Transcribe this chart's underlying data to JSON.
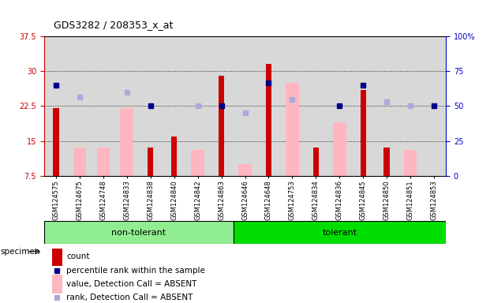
{
  "title": "GDS3282 / 208353_x_at",
  "samples": [
    "GSM124575",
    "GSM124675",
    "GSM124748",
    "GSM124833",
    "GSM124838",
    "GSM124840",
    "GSM124842",
    "GSM124863",
    "GSM124646",
    "GSM124648",
    "GSM124753",
    "GSM124834",
    "GSM124836",
    "GSM124845",
    "GSM124850",
    "GSM124851",
    "GSM124853"
  ],
  "groups": [
    {
      "name": "non-tolerant",
      "start": 0,
      "end": 8,
      "color": "#90EE90"
    },
    {
      "name": "tolerant",
      "start": 8,
      "end": 17,
      "color": "#00DD00"
    }
  ],
  "red_bars": [
    22.0,
    null,
    null,
    null,
    13.5,
    16.0,
    null,
    29.0,
    null,
    31.5,
    null,
    13.5,
    null,
    26.0,
    13.5,
    null,
    null
  ],
  "pink_bars": [
    null,
    13.5,
    13.5,
    22.0,
    null,
    null,
    13.0,
    null,
    10.0,
    null,
    27.5,
    null,
    19.0,
    null,
    null,
    13.0,
    null
  ],
  "blue_dots": [
    27.0,
    null,
    null,
    null,
    22.5,
    null,
    null,
    22.5,
    null,
    27.5,
    null,
    null,
    22.5,
    27.0,
    null,
    null,
    22.5
  ],
  "lightblue_dots": [
    null,
    24.5,
    null,
    25.5,
    null,
    null,
    22.5,
    null,
    21.0,
    null,
    24.0,
    null,
    null,
    null,
    23.5,
    22.5,
    null
  ],
  "ylim_left": [
    7.5,
    37.5
  ],
  "ylim_right": [
    0,
    100
  ],
  "yticks_left": [
    7.5,
    15.0,
    22.5,
    30.0,
    37.5
  ],
  "yticks_right": [
    0,
    25,
    50,
    75,
    100
  ],
  "ytick_labels_left": [
    "7.5",
    "15",
    "22.5",
    "30",
    "37.5"
  ],
  "ytick_labels_right": [
    "0",
    "25",
    "50",
    "75",
    "100%"
  ],
  "grid_lines": [
    15.0,
    22.5,
    30.0
  ],
  "left_axis_color": "#CC0000",
  "right_axis_color": "#0000CC",
  "background_color": "#d8d8d8",
  "legend_items": [
    {
      "label": "count",
      "color": "#CC0000",
      "type": "bar"
    },
    {
      "label": "percentile rank within the sample",
      "color": "#00008B",
      "type": "dot"
    },
    {
      "label": "value, Detection Call = ABSENT",
      "color": "#FFB6C1",
      "type": "bar"
    },
    {
      "label": "rank, Detection Call = ABSENT",
      "color": "#AAAADD",
      "type": "dot"
    }
  ]
}
